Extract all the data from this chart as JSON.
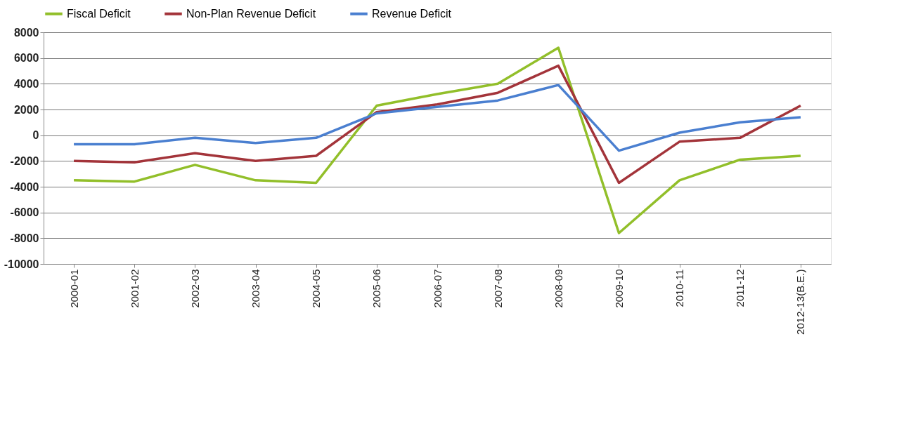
{
  "chart_data": {
    "type": "line",
    "categories": [
      "2000-01",
      "2001-02",
      "2002-03",
      "2003-04",
      "2004-05",
      "2005-06",
      "2006-07",
      "2007-08",
      "2008-09",
      "2009-10",
      "2010-11",
      "2011-12",
      "2012-13(B.E.)"
    ],
    "series": [
      {
        "name": "Fiscal Deficit",
        "color": "#92bf2a",
        "values": [
          -3500,
          -3600,
          -2300,
          -3500,
          -3700,
          2300,
          3200,
          4000,
          6800,
          -7600,
          -3500,
          -1900,
          -1600
        ]
      },
      {
        "name": "Non-Plan Revenue Deficit",
        "color": "#a3343a",
        "values": [
          -2000,
          -2100,
          -1400,
          -2000,
          -1600,
          1800,
          2400,
          3300,
          5400,
          -3700,
          -500,
          -200,
          2300
        ]
      },
      {
        "name": "Revenue Deficit",
        "color": "#4a7fd0",
        "values": [
          -700,
          -700,
          -200,
          -600,
          -200,
          1700,
          2200,
          2700,
          3900,
          -1200,
          200,
          1000,
          1400
        ]
      }
    ],
    "ylim": [
      -10000,
      8000
    ],
    "yticks": [
      -10000,
      -8000,
      -6000,
      -4000,
      -2000,
      0,
      2000,
      4000,
      6000,
      8000
    ],
    "grid": "y",
    "legend": "top",
    "marker": "none",
    "line_style": "solid"
  }
}
